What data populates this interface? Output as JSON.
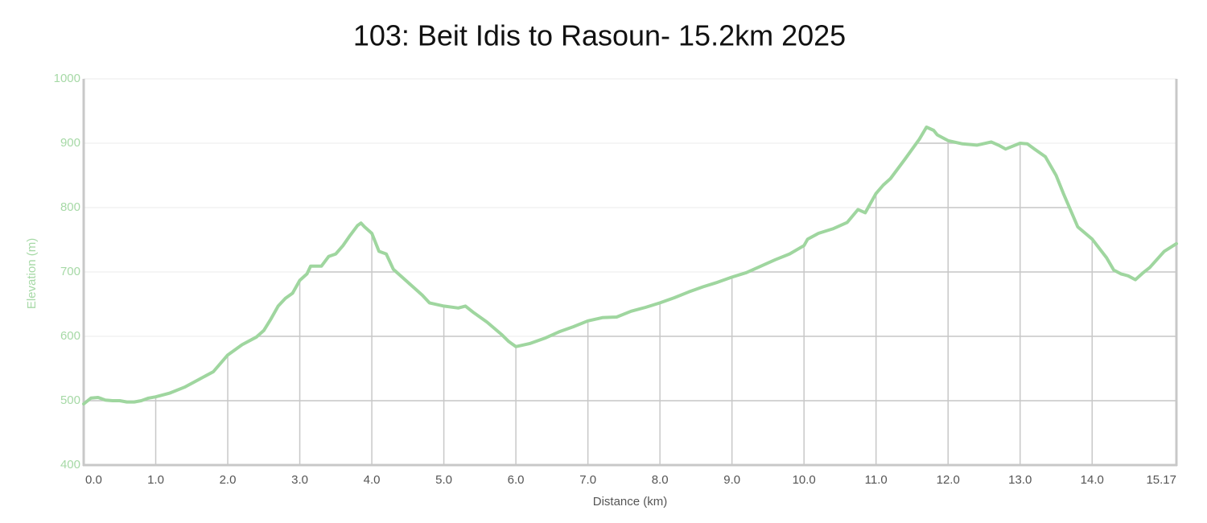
{
  "chart_data": {
    "type": "line",
    "title": "103: Beit Idis to Rasoun- 15.2km 2025",
    "x_label": "Distance (km)",
    "y_label": "Elevation (m)",
    "xlim": [
      0,
      15.17
    ],
    "ylim": [
      400,
      1000
    ],
    "xticks": [
      {
        "value": 0,
        "label": "0.0"
      },
      {
        "value": 1,
        "label": "1.0"
      },
      {
        "value": 2,
        "label": "2.0"
      },
      {
        "value": 3,
        "label": "3.0"
      },
      {
        "value": 4,
        "label": "4.0"
      },
      {
        "value": 5,
        "label": "5.0"
      },
      {
        "value": 6,
        "label": "6.0"
      },
      {
        "value": 7,
        "label": "7.0"
      },
      {
        "value": 8,
        "label": "8.0"
      },
      {
        "value": 9,
        "label": "9.0"
      },
      {
        "value": 10,
        "label": "10.0"
      },
      {
        "value": 11,
        "label": "11.0"
      },
      {
        "value": 12,
        "label": "12.0"
      },
      {
        "value": 13,
        "label": "13.0"
      },
      {
        "value": 14,
        "label": "14.0"
      },
      15.17
    ],
    "yticks": [
      400,
      500,
      600,
      700,
      800,
      900,
      1000
    ],
    "grid": true,
    "series": [
      {
        "name": "Elevation",
        "color": "#9fd69f",
        "x": [
          0,
          0.1,
          0.2,
          0.3,
          0.4,
          0.5,
          0.6,
          0.7,
          0.8,
          0.9,
          1.0,
          1.2,
          1.4,
          1.6,
          1.8,
          2.0,
          2.2,
          2.4,
          2.5,
          2.6,
          2.7,
          2.8,
          2.9,
          3.0,
          3.1,
          3.15,
          3.3,
          3.4,
          3.5,
          3.6,
          3.7,
          3.8,
          3.85,
          3.9,
          4.0,
          4.1,
          4.2,
          4.3,
          4.5,
          4.7,
          4.8,
          5.0,
          5.2,
          5.3,
          5.4,
          5.6,
          5.8,
          5.9,
          6.0,
          6.2,
          6.4,
          6.6,
          6.8,
          7.0,
          7.2,
          7.4,
          7.6,
          7.8,
          8.0,
          8.2,
          8.4,
          8.6,
          8.8,
          9.0,
          9.2,
          9.4,
          9.6,
          9.8,
          10.0,
          10.05,
          10.2,
          10.4,
          10.6,
          10.75,
          10.85,
          11.0,
          11.1,
          11.2,
          11.4,
          11.6,
          11.7,
          11.8,
          11.85,
          12.0,
          12.2,
          12.4,
          12.6,
          12.7,
          12.8,
          13.0,
          13.1,
          13.2,
          13.35,
          13.5,
          13.6,
          13.8,
          14.0,
          14.2,
          14.3,
          14.4,
          14.5,
          14.6,
          14.7,
          14.8,
          15.0,
          15.1,
          15.17
        ],
        "values": [
          495,
          504,
          505,
          501,
          500,
          500,
          498,
          498,
          500,
          504,
          506,
          512,
          521,
          533,
          545,
          571,
          587,
          599,
          609,
          627,
          647,
          659,
          667,
          687,
          697,
          709,
          709,
          724,
          728,
          741,
          757,
          772,
          776,
          770,
          760,
          732,
          728,
          704,
          684,
          664,
          652,
          647,
          644,
          647,
          638,
          622,
          603,
          592,
          584,
          589,
          597,
          607,
          615,
          624,
          629,
          630,
          639,
          645,
          652,
          660,
          669,
          677,
          684,
          692,
          699,
          709,
          719,
          728,
          741,
          751,
          760,
          767,
          777,
          797,
          792,
          822,
          835,
          845,
          875,
          906,
          925,
          920,
          913,
          904,
          899,
          897,
          902,
          897,
          891,
          900,
          899,
          891,
          879,
          850,
          822,
          770,
          751,
          722,
          703,
          697,
          694,
          688,
          698,
          707,
          732,
          739,
          744
        ]
      }
    ]
  }
}
